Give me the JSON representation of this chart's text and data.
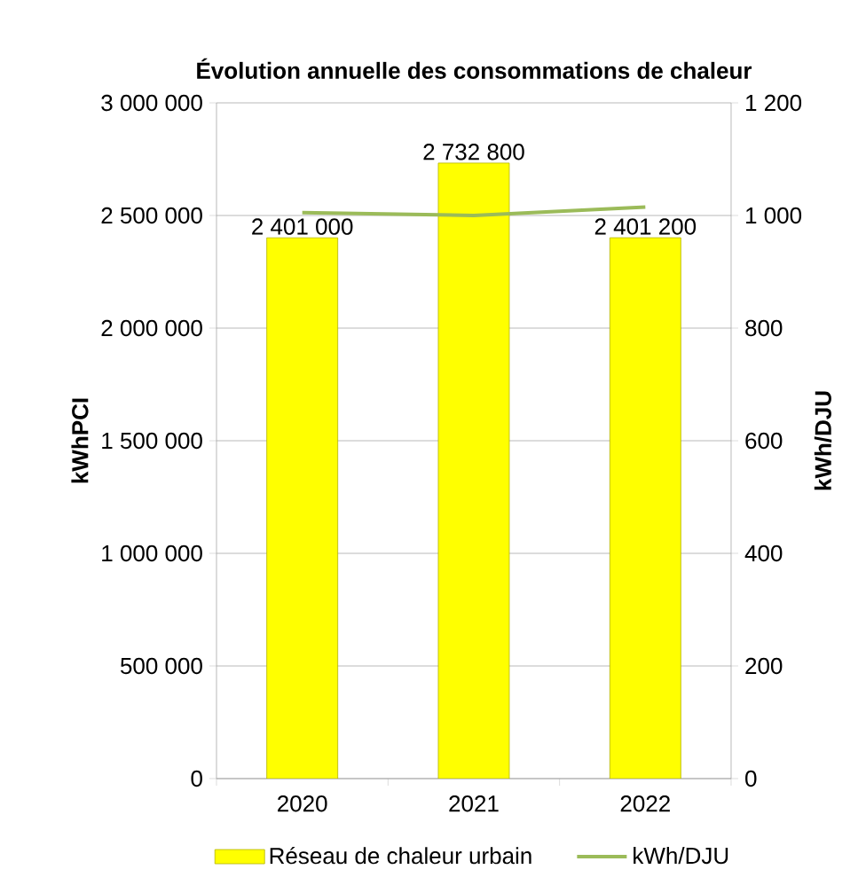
{
  "chart_data": {
    "type": "bar",
    "title": "Évolution annuelle des consommations de chaleur",
    "ylabel": "kWhPCI",
    "y2label": "kWh/DJU",
    "categories": [
      "2020",
      "2021",
      "2022"
    ],
    "series": [
      {
        "name": "Réseau de chaleur urbain",
        "color": "#ffff00",
        "values": [
          2401000,
          2732800,
          2401200
        ],
        "value_labels": [
          "2 401 000",
          "2 732 800",
          "2 401 200"
        ]
      },
      {
        "name": "kWh/DJU",
        "type": "line",
        "axis": "y2",
        "color": "#9bbb59",
        "values": [
          1005,
          1000,
          1015
        ]
      }
    ],
    "ylim": [
      0,
      3000000
    ],
    "yticks": [
      0,
      {
        "value": 500000,
        "label": "500 000"
      },
      {
        "value": 1000000,
        "label": "1 000 000"
      },
      {
        "value": 1500000,
        "label": "1 500 000"
      },
      {
        "value": 2000000,
        "label": "2 000 000"
      },
      {
        "value": 2500000,
        "label": "2 500 000"
      },
      {
        "value": 3000000,
        "label": "3 000 000"
      }
    ],
    "y2lim": [
      0,
      1200
    ],
    "y2ticks": [
      0,
      200,
      400,
      600,
      800,
      {
        "value": 1000,
        "label": "1 000"
      },
      {
        "value": 1200,
        "label": "1 200"
      }
    ],
    "grid": "y",
    "legend": "bottom",
    "marker": "none",
    "line_style": "solid"
  }
}
